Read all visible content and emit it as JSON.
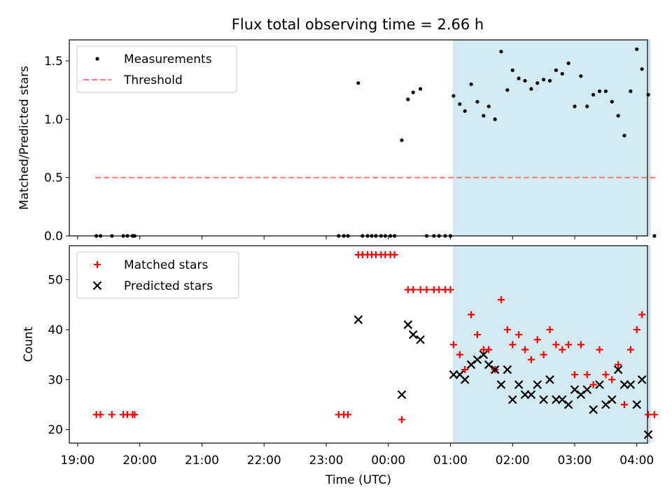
{
  "chart_data": [
    {
      "type": "scatter",
      "title": "Flux total observing time = 2.66 h",
      "xlabel": "",
      "ylabel": "Matched/Predicted stars",
      "ylim": [
        0,
        1.68
      ],
      "xlim": [
        "19:00",
        "04:00"
      ],
      "yticks": [
        "0.0",
        "0.5",
        "1.0",
        "1.5"
      ],
      "yticks_values": [
        0,
        0.5,
        1.0,
        1.5
      ],
      "legend": {
        "placement": "upper-left",
        "entries": [
          "Measurements",
          "Threshold"
        ]
      },
      "series": [
        {
          "name": "Measurements",
          "marker": "dot",
          "color": "#000000",
          "points": [
            [
              "19:18",
              0
            ],
            [
              "19:22",
              0
            ],
            [
              "19:33",
              0
            ],
            [
              "19:44",
              0
            ],
            [
              "19:48",
              0
            ],
            [
              "19:53",
              0
            ],
            [
              "19:55",
              0
            ],
            [
              "23:12",
              0
            ],
            [
              "23:17",
              0
            ],
            [
              "23:21",
              0
            ],
            [
              "23:31",
              1.31
            ],
            [
              "23:35",
              0
            ],
            [
              "23:40",
              0
            ],
            [
              "23:44",
              0
            ],
            [
              "23:48",
              0
            ],
            [
              "23:53",
              0
            ],
            [
              "23:57",
              0
            ],
            [
              "00:02",
              0
            ],
            [
              "00:06",
              0
            ],
            [
              "00:13",
              0.82
            ],
            [
              "00:19",
              1.17
            ],
            [
              "00:24",
              1.23
            ],
            [
              "00:31",
              1.26
            ],
            [
              "00:37",
              0
            ],
            [
              "00:44",
              0
            ],
            [
              "00:49",
              0
            ],
            [
              "00:55",
              0
            ],
            [
              "01:00",
              0
            ],
            [
              "01:03",
              1.2
            ],
            [
              "01:09",
              1.13
            ],
            [
              "01:14",
              1.07
            ],
            [
              "01:20",
              1.3
            ],
            [
              "01:26",
              1.15
            ],
            [
              "01:32",
              1.03
            ],
            [
              "01:37",
              1.11
            ],
            [
              "01:43",
              1.0
            ],
            [
              "01:49",
              1.58
            ],
            [
              "01:55",
              1.25
            ],
            [
              "02:00",
              1.42
            ],
            [
              "02:06",
              1.35
            ],
            [
              "02:12",
              1.33
            ],
            [
              "02:18",
              1.26
            ],
            [
              "02:24",
              1.31
            ],
            [
              "02:30",
              1.34
            ],
            [
              "02:36",
              1.33
            ],
            [
              "02:42",
              1.42
            ],
            [
              "02:48",
              1.39
            ],
            [
              "02:54",
              1.48
            ],
            [
              "03:00",
              1.11
            ],
            [
              "03:06",
              1.37
            ],
            [
              "03:12",
              1.11
            ],
            [
              "03:18",
              1.21
            ],
            [
              "03:24",
              1.24
            ],
            [
              "03:30",
              1.24
            ],
            [
              "03:36",
              1.15
            ],
            [
              "03:42",
              1.03
            ],
            [
              "03:48",
              0.86
            ],
            [
              "03:54",
              1.24
            ],
            [
              "04:00",
              1.6
            ],
            [
              "04:05",
              1.43
            ],
            [
              "04:11",
              1.21
            ],
            [
              "04:17",
              0
            ]
          ]
        },
        {
          "name": "Threshold",
          "style": "dashed",
          "color": "#ff7777",
          "points": [
            [
              "19:17",
              0.5
            ],
            [
              "04:18",
              0.5
            ]
          ]
        }
      ],
      "highlight_span": {
        "from": "01:03",
        "to": "04:13",
        "color": "#d3eaf0"
      }
    },
    {
      "type": "scatter",
      "title": "",
      "xlabel": "Time (UTC)",
      "ylabel": "Count",
      "ylim": [
        17.3,
        56.8
      ],
      "xlim": [
        "19:00",
        "04:00"
      ],
      "xticks": [
        "19:00",
        "20:00",
        "21:00",
        "22:00",
        "23:00",
        "00:00",
        "01:00",
        "02:00",
        "03:00",
        "04:00"
      ],
      "yticks": [
        "20",
        "30",
        "40",
        "50"
      ],
      "yticks_values": [
        20,
        30,
        40,
        50
      ],
      "legend": {
        "placement": "upper-left",
        "entries": [
          "Matched stars",
          "Predicted stars"
        ]
      },
      "series": [
        {
          "name": "Matched stars",
          "marker": "plus",
          "color": "#ff0000",
          "points": [
            [
              "19:18",
              23
            ],
            [
              "19:22",
              23
            ],
            [
              "19:33",
              23
            ],
            [
              "19:44",
              23
            ],
            [
              "19:48",
              23
            ],
            [
              "19:53",
              23
            ],
            [
              "19:55",
              23
            ],
            [
              "23:12",
              23
            ],
            [
              "23:17",
              23
            ],
            [
              "23:21",
              23
            ],
            [
              "23:31",
              55
            ],
            [
              "23:35",
              55
            ],
            [
              "23:40",
              55
            ],
            [
              "23:44",
              55
            ],
            [
              "23:48",
              55
            ],
            [
              "23:53",
              55
            ],
            [
              "23:57",
              55
            ],
            [
              "00:02",
              55
            ],
            [
              "00:06",
              55
            ],
            [
              "00:13",
              22
            ],
            [
              "00:19",
              48
            ],
            [
              "00:24",
              48
            ],
            [
              "00:31",
              48
            ],
            [
              "00:37",
              48
            ],
            [
              "00:44",
              48
            ],
            [
              "00:49",
              48
            ],
            [
              "00:55",
              48
            ],
            [
              "01:00",
              48
            ],
            [
              "01:03",
              37
            ],
            [
              "01:09",
              35
            ],
            [
              "01:14",
              32
            ],
            [
              "01:20",
              43
            ],
            [
              "01:26",
              39
            ],
            [
              "01:32",
              36
            ],
            [
              "01:37",
              36
            ],
            [
              "01:43",
              32
            ],
            [
              "01:49",
              46
            ],
            [
              "01:55",
              40
            ],
            [
              "02:00",
              37
            ],
            [
              "02:06",
              39
            ],
            [
              "02:12",
              36
            ],
            [
              "02:18",
              34
            ],
            [
              "02:24",
              38
            ],
            [
              "02:30",
              35
            ],
            [
              "02:36",
              40
            ],
            [
              "02:42",
              37
            ],
            [
              "02:48",
              36
            ],
            [
              "02:54",
              37
            ],
            [
              "03:00",
              31
            ],
            [
              "03:06",
              37
            ],
            [
              "03:12",
              31
            ],
            [
              "03:18",
              29
            ],
            [
              "03:24",
              36
            ],
            [
              "03:30",
              31
            ],
            [
              "03:36",
              30
            ],
            [
              "03:42",
              33
            ],
            [
              "03:48",
              25
            ],
            [
              "03:54",
              36
            ],
            [
              "04:00",
              40
            ],
            [
              "04:05",
              43
            ],
            [
              "04:11",
              23
            ],
            [
              "04:17",
              23
            ]
          ]
        },
        {
          "name": "Predicted stars",
          "marker": "x",
          "color": "#000000",
          "points": [
            [
              "23:31",
              42
            ],
            [
              "00:13",
              27
            ],
            [
              "00:19",
              41
            ],
            [
              "00:24",
              39
            ],
            [
              "00:31",
              38
            ],
            [
              "01:03",
              31
            ],
            [
              "01:09",
              31
            ],
            [
              "01:14",
              30
            ],
            [
              "01:20",
              33
            ],
            [
              "01:26",
              34
            ],
            [
              "01:32",
              35
            ],
            [
              "01:37",
              33
            ],
            [
              "01:43",
              32
            ],
            [
              "01:49",
              29
            ],
            [
              "01:55",
              32
            ],
            [
              "02:00",
              26
            ],
            [
              "02:06",
              29
            ],
            [
              "02:12",
              27
            ],
            [
              "02:18",
              27
            ],
            [
              "02:24",
              29
            ],
            [
              "02:30",
              26
            ],
            [
              "02:36",
              30
            ],
            [
              "02:42",
              26
            ],
            [
              "02:48",
              26
            ],
            [
              "02:54",
              25
            ],
            [
              "03:00",
              28
            ],
            [
              "03:06",
              27
            ],
            [
              "03:12",
              28
            ],
            [
              "03:18",
              24
            ],
            [
              "03:24",
              29
            ],
            [
              "03:30",
              25
            ],
            [
              "03:36",
              26
            ],
            [
              "03:42",
              32
            ],
            [
              "03:48",
              29
            ],
            [
              "03:54",
              29
            ],
            [
              "04:00",
              25
            ],
            [
              "04:05",
              30
            ],
            [
              "04:11",
              19
            ]
          ]
        }
      ],
      "highlight_span": {
        "from": "01:03",
        "to": "04:13",
        "color": "#d3eaf0"
      }
    }
  ]
}
